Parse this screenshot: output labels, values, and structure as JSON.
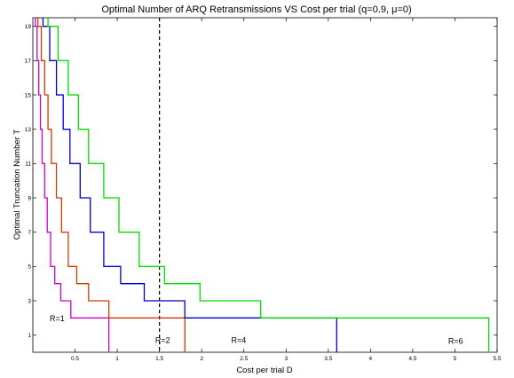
{
  "chart_data": {
    "type": "line",
    "title": "Optimal Number of ARQ Retransmissions VS Cost per trial (q=0.9, μ=0)",
    "xlabel": "Cost per trial D",
    "ylabel": "Optimal Truncation Number T",
    "xlim": [
      0,
      5.5
    ],
    "ylim": [
      0,
      19.5
    ],
    "x_ticks": [
      "0.5",
      "1",
      "1.5",
      "2",
      "2.5",
      "3",
      "3.5",
      "4",
      "4.5",
      "5",
      "5.5"
    ],
    "y_ticks": [
      "1",
      "3",
      "5",
      "7",
      "9",
      "11",
      "13",
      "15",
      "17",
      "19"
    ],
    "grid": false,
    "vertical_line": {
      "x": 1.5,
      "style": "dashed"
    },
    "series": [
      {
        "color": "#cc00cc",
        "x": [
          0.03,
          0.05,
          0.07,
          0.09,
          0.11,
          0.14,
          0.17,
          0.21,
          0.26,
          0.33,
          0.45,
          0.9,
          0.9
        ],
        "y": [
          19,
          17,
          15,
          13,
          11,
          9,
          7,
          5,
          4,
          3,
          2,
          1,
          0
        ]
      },
      {
        "color": "#d43a00",
        "x": [
          0.06,
          0.1,
          0.14,
          0.18,
          0.22,
          0.28,
          0.34,
          0.42,
          0.52,
          0.66,
          0.9,
          1.8,
          1.8
        ],
        "y": [
          19,
          17,
          15,
          13,
          11,
          9,
          7,
          5,
          4,
          3,
          2,
          1,
          0
        ]
      },
      {
        "color": "#0000cc",
        "x": [
          0.12,
          0.2,
          0.28,
          0.36,
          0.44,
          0.56,
          0.68,
          0.84,
          1.04,
          1.32,
          1.8,
          3.6,
          3.6
        ],
        "y": [
          19,
          17,
          15,
          13,
          11,
          9,
          7,
          5,
          4,
          3,
          2,
          1,
          0
        ]
      },
      {
        "color": "#00dd00",
        "x": [
          0.18,
          0.3,
          0.42,
          0.54,
          0.66,
          0.84,
          1.02,
          1.26,
          1.56,
          1.98,
          2.7,
          5.4,
          5.4
        ],
        "y": [
          19,
          17,
          15,
          13,
          11,
          9,
          7,
          5,
          4,
          3,
          2,
          1,
          0
        ]
      }
    ],
    "annotations": [
      {
        "text": "R=1",
        "x": 0.2,
        "y": 1.8
      },
      {
        "text": "R=2",
        "x": 1.45,
        "y": 0.55
      },
      {
        "text": "R=4",
        "x": 2.35,
        "y": 0.55
      },
      {
        "text": "R=6",
        "x": 4.92,
        "y": 0.5
      }
    ]
  }
}
